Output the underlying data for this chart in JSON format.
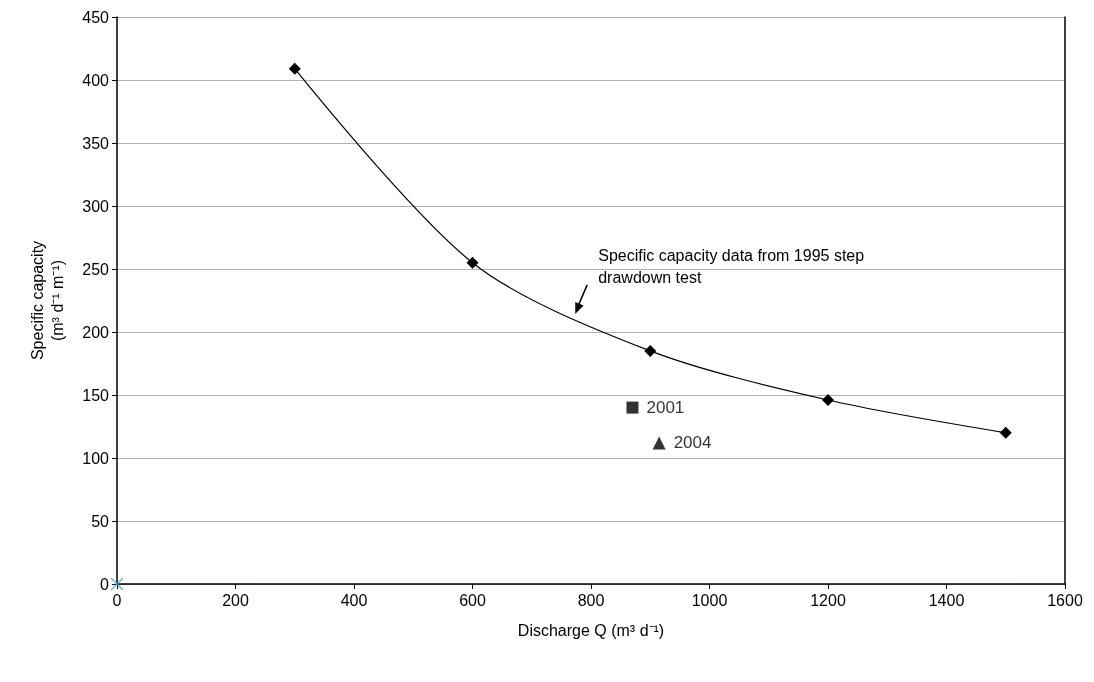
{
  "chart_data": {
    "type": "scatter",
    "xlabel": "Discharge Q (m³ d⁻¹)",
    "ylabel": "Specific capacity\n(m³ d⁻¹ m⁻¹)",
    "xlim": [
      0,
      1600
    ],
    "xticks": [
      0,
      200,
      400,
      600,
      800,
      1000,
      1200,
      1400,
      1600
    ],
    "ylim": [
      0,
      450
    ],
    "yticks": [
      0,
      50,
      100,
      150,
      200,
      250,
      300,
      350,
      400,
      450
    ],
    "grid": "y",
    "legend": false,
    "series": [
      {
        "type": "line",
        "color": "#000000",
        "marker": "diamond",
        "line_style": "solid",
        "x": [
          300,
          600,
          900,
          1200,
          1500
        ],
        "values": [
          409,
          255,
          185,
          146,
          120
        ]
      },
      {
        "name": "2001",
        "color": "#000000",
        "marker": "square",
        "x": [
          870
        ],
        "values": [
          140
        ]
      },
      {
        "name": "2004",
        "color": "#000000",
        "marker": "triangle",
        "x": [
          915
        ],
        "values": [
          112
        ]
      },
      {
        "color": "#4bacc6",
        "marker": "cross",
        "x": [
          0
        ],
        "values": [
          0
        ]
      }
    ],
    "annotations": [
      {
        "text": "Specific capacity data from 1995 step\ndrawdown test",
        "x": 770,
        "y": 212
      }
    ]
  }
}
